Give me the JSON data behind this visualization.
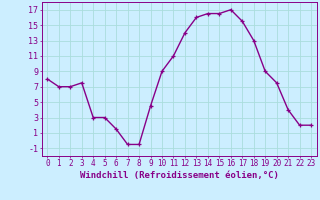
{
  "x": [
    0,
    1,
    2,
    3,
    4,
    5,
    6,
    7,
    8,
    9,
    10,
    11,
    12,
    13,
    14,
    15,
    16,
    17,
    18,
    19,
    20,
    21,
    22,
    23
  ],
  "y": [
    8,
    7,
    7,
    7.5,
    3,
    3,
    1.5,
    -0.5,
    -0.5,
    4.5,
    9,
    11,
    14,
    16,
    16.5,
    16.5,
    17,
    15.5,
    13,
    9,
    7.5,
    4,
    2,
    2
  ],
  "line_color": "#880088",
  "marker_color": "#880088",
  "bg_color": "#cceeff",
  "grid_color": "#aadddd",
  "axis_label_color": "#880088",
  "tick_color": "#880088",
  "xlabel": "Windchill (Refroidissement éolien,°C)",
  "ylim": [
    -2,
    18
  ],
  "xlim": [
    -0.5,
    23.5
  ],
  "yticks": [
    -1,
    1,
    3,
    5,
    7,
    9,
    11,
    13,
    15,
    17
  ],
  "xticks": [
    0,
    1,
    2,
    3,
    4,
    5,
    6,
    7,
    8,
    9,
    10,
    11,
    12,
    13,
    14,
    15,
    16,
    17,
    18,
    19,
    20,
    21,
    22,
    23
  ],
  "xlabel_fontsize": 6.5,
  "tick_fontsize": 5.5,
  "ytick_fontsize": 6.0,
  "line_width": 1.0,
  "marker_size": 3.5
}
